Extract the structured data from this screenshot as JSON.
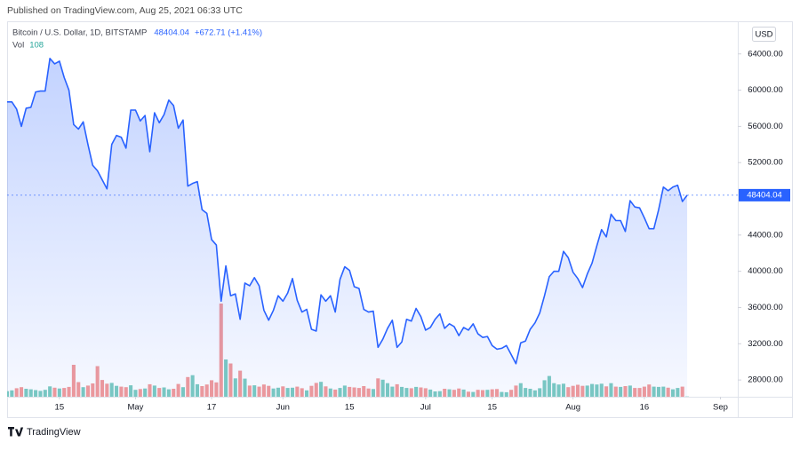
{
  "header": "Published on TradingView.com, Aug 25, 2021 06:33 UTC",
  "footer": "TradingView",
  "chart_data": {
    "type": "line",
    "change": "+672.71 (+1.41%)",
    "currency": "USD",
    "categories": [
      null,
      null,
      null,
      null,
      null,
      null,
      null,
      null,
      null,
      null,
      null,
      "15",
      null,
      null,
      null,
      null,
      null,
      null,
      null,
      null,
      null,
      null,
      null,
      null,
      null,
      null,
      null,
      "May",
      null,
      null,
      null,
      null,
      null,
      null,
      null,
      null,
      null,
      null,
      null,
      null,
      null,
      null,
      null,
      "17",
      null,
      null,
      null,
      null,
      null,
      null,
      null,
      null,
      null,
      null,
      null,
      null,
      null,
      null,
      "Jun",
      null,
      null,
      null,
      null,
      null,
      null,
      null,
      null,
      null,
      null,
      null,
      null,
      null,
      "15",
      null,
      null,
      null,
      null,
      null,
      null,
      null,
      null,
      null,
      null,
      null,
      null,
      null,
      null,
      null,
      "Jul",
      null,
      null,
      null,
      null,
      null,
      null,
      null,
      null,
      null,
      null,
      null,
      null,
      null,
      "15",
      null,
      null,
      null,
      null,
      null,
      null,
      null,
      null,
      null,
      null,
      null,
      null,
      null,
      null,
      null,
      null,
      "Aug",
      null,
      null,
      null,
      null,
      null,
      null,
      null,
      null,
      null,
      null,
      null,
      null,
      null,
      null,
      "16",
      null,
      null,
      null,
      null,
      null,
      null,
      null,
      null,
      null,
      null,
      null,
      null,
      null,
      null,
      null,
      "Sep"
    ],
    "series": [
      {
        "name": "Bitcoin / U.S. Dollar, 1D, BITSTAMP",
        "color": "#2962ff",
        "values": [
          58700,
          58700,
          57900,
          56000,
          58000,
          58100,
          59800,
          59900,
          59900,
          63500,
          62900,
          63200,
          61400,
          60000,
          56200,
          55700,
          56500,
          54000,
          51700,
          51100,
          50100,
          49100,
          54000,
          55000,
          54800,
          53600,
          57800,
          57800,
          56600,
          57200,
          53200,
          57500,
          56400,
          57300,
          58900,
          58300,
          55800,
          56700,
          49400,
          49700,
          49900,
          46800,
          46400,
          43500,
          42900,
          36700,
          40600,
          37300,
          37500,
          34700,
          38700,
          38400,
          39300,
          38400,
          35700,
          34600,
          35700,
          37300,
          36700,
          37600,
          39200,
          36800,
          35500,
          35800,
          33600,
          33400,
          37400,
          36700,
          37300,
          35500,
          39100,
          40500,
          40100,
          38300,
          38100,
          35800,
          35500,
          35600,
          31600,
          32500,
          33700,
          34600,
          31600,
          32200,
          34700,
          34500,
          35900,
          35000,
          33500,
          33800,
          34700,
          35300,
          33700,
          34200,
          33900,
          32900,
          33800,
          33500,
          34200,
          33100,
          32700,
          32800,
          31800,
          31400,
          31500,
          31800,
          30800,
          29800,
          32100,
          32300,
          33600,
          34300,
          35400,
          37300,
          39400,
          40000,
          40000,
          42200,
          41500,
          39900,
          39200,
          38200,
          39700,
          40900,
          42800,
          44600,
          43800,
          46300,
          45600,
          45600,
          44400,
          47800,
          47100,
          47000,
          45900,
          44700,
          44700,
          46800,
          49300,
          48900,
          49300,
          49500,
          47700,
          48404.04,
          null,
          null,
          null,
          null,
          null,
          null,
          null
        ]
      },
      {
        "name": "Vol",
        "type": "bar",
        "up_color": "#7ccbc0",
        "down_color": "#f39a99",
        "values": [
          2100,
          2400,
          3200,
          3600,
          3000,
          2800,
          2500,
          2200,
          2600,
          3900,
          3400,
          3100,
          3300,
          3700,
          12000,
          5500,
          3600,
          4200,
          5000,
          11500,
          6300,
          4900,
          5200,
          4100,
          3800,
          3600,
          4300,
          2600,
          2900,
          3100,
          4700,
          4200,
          3300,
          3500,
          2800,
          3000,
          4800,
          3600,
          7400,
          8100,
          4700,
          4000,
          4600,
          6200,
          5400,
          35000,
          14000,
          12500,
          6900,
          9800,
          6800,
          4200,
          4300,
          3800,
          4600,
          4100,
          3100,
          3400,
          3900,
          3300,
          3400,
          3800,
          3200,
          2400,
          4100,
          5200,
          5600,
          3900,
          3100,
          2700,
          3300,
          4200,
          3700,
          3500,
          3300,
          4000,
          3100,
          2900,
          6900,
          6400,
          5100,
          3800,
          4700,
          3700,
          3300,
          3200,
          3700,
          3500,
          3200,
          2700,
          2000,
          2100,
          3000,
          2800,
          2600,
          3100,
          2700,
          1900,
          1800,
          2600,
          2500,
          2600,
          2800,
          2900,
          1800,
          1700,
          2600,
          4200,
          5100,
          3300,
          3000,
          2400,
          3200,
          6200,
          7800,
          5100,
          4600,
          4900,
          3600,
          4100,
          4500,
          4100,
          4200,
          4800,
          4600,
          4900,
          3900,
          5100,
          3800,
          3700,
          4000,
          4200,
          3300,
          3300,
          3800,
          4600,
          3800,
          3700,
          3800,
          3400,
          2800,
          3300,
          3800,
          108,
          null,
          null,
          null,
          null,
          null,
          null,
          null
        ]
      }
    ],
    "ylim": [
      26150,
      67600
    ],
    "yticks": [
      {
        "value": 28000,
        "label": "28000.00"
      },
      {
        "value": 32000,
        "label": "32000.00"
      },
      {
        "value": 36000,
        "label": "36000.00"
      },
      {
        "value": 40000,
        "label": "40000.00"
      },
      {
        "value": 44000,
        "label": "44000.00"
      },
      {
        "value": 52000,
        "label": "52000.00"
      },
      {
        "value": 56000,
        "label": "56000.00"
      },
      {
        "value": 60000,
        "label": "60000.00"
      },
      {
        "value": 64000,
        "label": "64000.00"
      }
    ],
    "grid": false
  }
}
